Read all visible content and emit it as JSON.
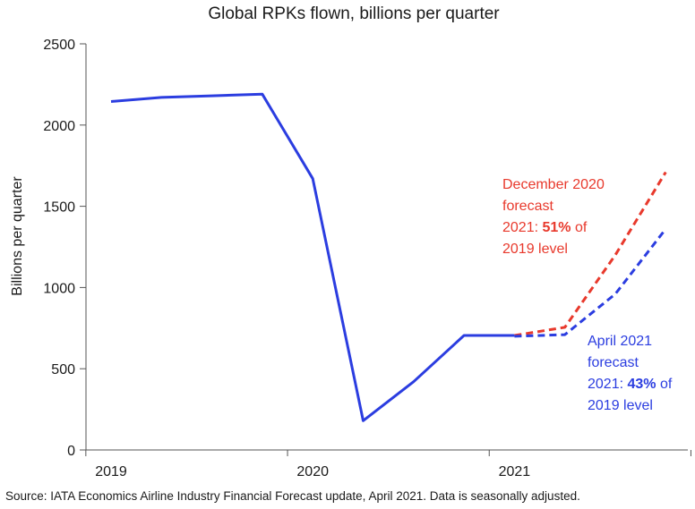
{
  "chart_data": {
    "type": "line",
    "title": "Global RPKs flown, billions per quarter",
    "ylabel": "Billions per quarter",
    "xlabel": "",
    "ylim": [
      0,
      2500
    ],
    "yticks": [
      0,
      500,
      1000,
      1500,
      2000,
      2500
    ],
    "xtick_labels": [
      "2019",
      "2020",
      "2021"
    ],
    "x": [
      "2019 Q1",
      "2019 Q2",
      "2019 Q3",
      "2019 Q4",
      "2020 Q1",
      "2020 Q2",
      "2020 Q3",
      "2020 Q4",
      "2021 Q1",
      "2021 Q2",
      "2021 Q3",
      "2021 Q4"
    ],
    "grid": false,
    "series": [
      {
        "color": "#2b3de0",
        "style": "solid",
        "x": [
          "2019 Q1",
          "2019 Q2",
          "2019 Q3",
          "2019 Q4",
          "2020 Q1",
          "2020 Q2",
          "2020 Q3",
          "2020 Q4",
          "2021 Q1"
        ],
        "values": [
          2145,
          2170,
          2180,
          2190,
          1670,
          180,
          420,
          705,
          705
        ]
      },
      {
        "color": "#e8392c",
        "style": "dashed",
        "x": [
          "2021 Q1",
          "2021 Q2",
          "2021 Q3",
          "2021 Q4"
        ],
        "values": [
          705,
          755,
          1200,
          1710
        ]
      },
      {
        "color": "#2b3de0",
        "style": "dashed",
        "x": [
          "2021 Q1",
          "2021 Q2",
          "2021 Q3",
          "2021 Q4"
        ],
        "values": [
          700,
          710,
          960,
          1360
        ]
      }
    ],
    "annotations": [
      {
        "color": "#e8392c",
        "lines": [
          [
            "December 2020"
          ],
          [
            "forecast"
          ],
          [
            "2021: ",
            "51%",
            " of"
          ],
          [
            "2019 level"
          ]
        ],
        "bold": "51%"
      },
      {
        "color": "#2b3de0",
        "lines": [
          [
            "April 2021"
          ],
          [
            "forecast"
          ],
          [
            "2021: ",
            "43%",
            " of"
          ],
          [
            "2019 level"
          ]
        ],
        "bold": "43%"
      }
    ]
  },
  "source_note": "Source: IATA Economics Airline Industry Financial Forecast update, April 2021. Data is seasonally adjusted."
}
